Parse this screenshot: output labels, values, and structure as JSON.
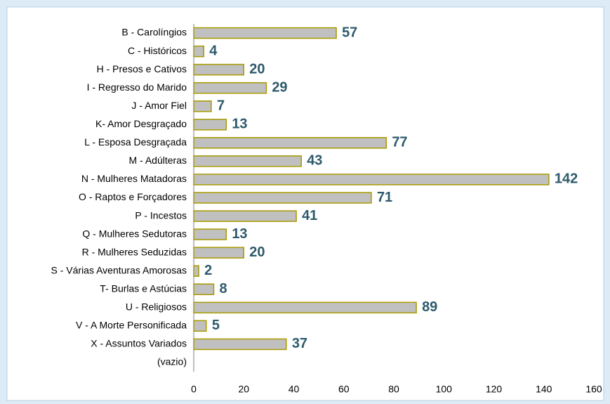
{
  "chart_data": {
    "type": "bar",
    "orientation": "horizontal",
    "categories": [
      "B - Carolíngios",
      "C - Históricos",
      "H - Presos e Cativos",
      "I - Regresso do Marido",
      "J - Amor Fiel",
      "K- Amor Desgraçado",
      "L - Esposa Desgraçada",
      "M - Adúlteras",
      "N - Mulheres Matadoras",
      "O - Raptos e Forçadores",
      "P - Incestos",
      "Q - Mulheres Sedutoras",
      "R - Mulheres Seduzidas",
      "S - Várias Aventuras Amorosas",
      "T- Burlas e Astúcias",
      "U - Religiosos",
      "V - A Morte Personificada",
      "X - Assuntos Variados",
      "(vazio)"
    ],
    "values": [
      57,
      4,
      20,
      29,
      7,
      13,
      77,
      43,
      142,
      71,
      41,
      13,
      20,
      2,
      8,
      89,
      5,
      37,
      null
    ],
    "color": "#c0c0c0",
    "edge_color": "#a89a00",
    "label_color": "#2d5a6b",
    "xlim": [
      0,
      160
    ],
    "xticks": [
      0,
      20,
      40,
      60,
      80,
      100,
      120,
      140,
      160
    ],
    "grid": false
  }
}
